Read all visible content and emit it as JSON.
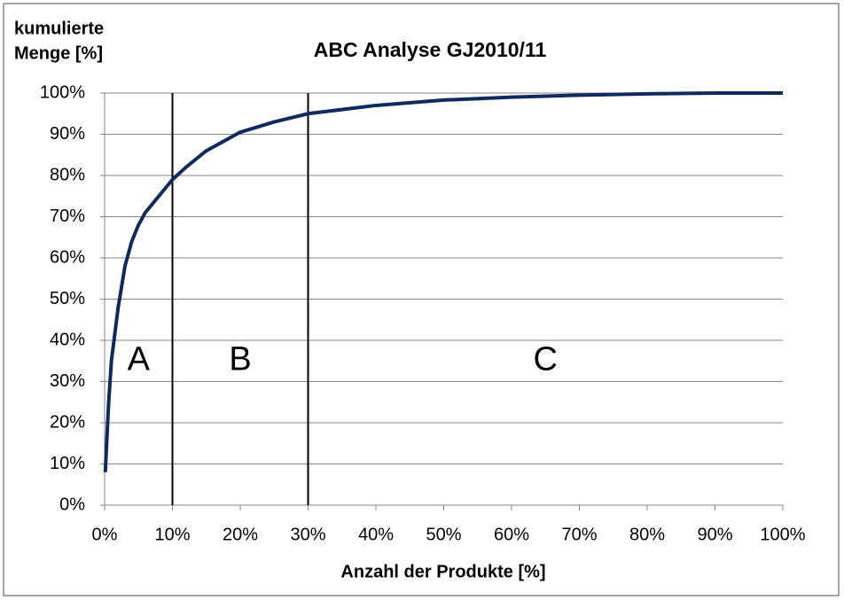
{
  "chart_data": {
    "type": "line",
    "title": "ABC Analyse GJ2010/11",
    "ylabel": [
      "kumulierte",
      "Menge [%]"
    ],
    "xlabel": "Anzahl der Produkte [%]",
    "x": [
      0.1,
      0.3,
      0.6,
      1,
      2,
      3,
      4,
      5,
      6,
      8,
      10,
      12,
      15,
      20,
      25,
      30,
      40,
      50,
      60,
      70,
      80,
      90,
      100
    ],
    "series": [
      {
        "name": "kumulierte Menge",
        "color": "#0f2a5c",
        "values": [
          8,
          15,
          25,
          35,
          48,
          58,
          64,
          68,
          71,
          75,
          79,
          82,
          86,
          90.5,
          93,
          95,
          97,
          98.3,
          99,
          99.5,
          99.8,
          100,
          100
        ]
      }
    ],
    "boundaries": [
      10,
      30
    ],
    "zones": [
      "A",
      "B",
      "C"
    ],
    "xlim": [
      0,
      100
    ],
    "ylim": [
      0,
      100
    ],
    "xticks": [
      {
        "value": 0,
        "label": "0%"
      },
      {
        "value": 10,
        "label": "10%"
      },
      {
        "value": 20,
        "label": "20%"
      },
      {
        "value": 30,
        "label": "30%"
      },
      {
        "value": 40,
        "label": "40%"
      },
      {
        "value": 50,
        "label": "50%"
      },
      {
        "value": 60,
        "label": "60%"
      },
      {
        "value": 70,
        "label": "70%"
      },
      {
        "value": 80,
        "label": "80%"
      },
      {
        "value": 90,
        "label": "90%"
      },
      {
        "value": 100,
        "label": "100%"
      }
    ],
    "yticks": [
      {
        "value": 0,
        "label": "0%"
      },
      {
        "value": 10,
        "label": "10%"
      },
      {
        "value": 20,
        "label": "20%"
      },
      {
        "value": 30,
        "label": "30%"
      },
      {
        "value": 40,
        "label": "40%"
      },
      {
        "value": 50,
        "label": "50%"
      },
      {
        "value": 60,
        "label": "60%"
      },
      {
        "value": 70,
        "label": "70%"
      },
      {
        "value": 80,
        "label": "80%"
      },
      {
        "value": 90,
        "label": "90%"
      },
      {
        "value": 100,
        "label": "100%"
      }
    ],
    "grid": true
  }
}
